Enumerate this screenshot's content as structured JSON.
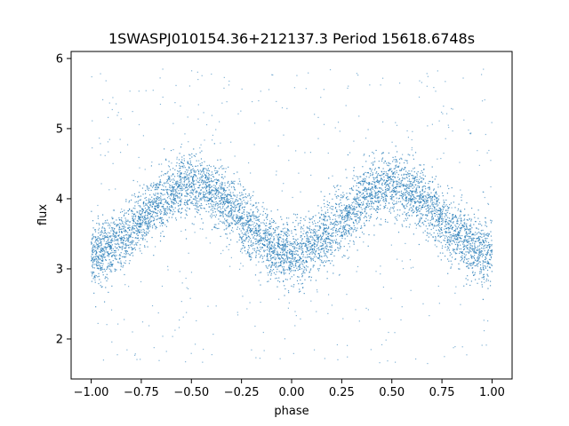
{
  "chart_data": {
    "type": "scatter",
    "title": "1SWASPJ010154.36+212137.3 Period 15618.6748s",
    "xlabel": "phase",
    "ylabel": "flux",
    "xlim": [
      -1.1,
      1.1
    ],
    "ylim": [
      1.43,
      6.1
    ],
    "x_ticks": [
      -1.0,
      -0.75,
      -0.5,
      -0.25,
      0.0,
      0.25,
      0.5,
      0.75,
      1.0
    ],
    "x_tick_labels": [
      "−1.00",
      "−0.75",
      "−0.50",
      "−0.25",
      "0.00",
      "0.25",
      "0.50",
      "0.75",
      "1.00"
    ],
    "y_ticks": [
      2,
      3,
      4,
      5,
      6
    ],
    "y_tick_labels": [
      "2",
      "3",
      "4",
      "5",
      "6"
    ],
    "grid": false,
    "marker_color": "#1f77b4",
    "phase_range": [
      -1.0,
      1.0
    ],
    "flux_mean": 3.7,
    "flux_amplitude": 0.48,
    "flux_scatter_sigma": 0.22,
    "minimum_phases": [
      -1.0,
      0.0,
      1.0
    ],
    "maximum_phases": [
      -0.5,
      0.5
    ],
    "flux_outlier_range": [
      1.65,
      5.85
    ]
  }
}
